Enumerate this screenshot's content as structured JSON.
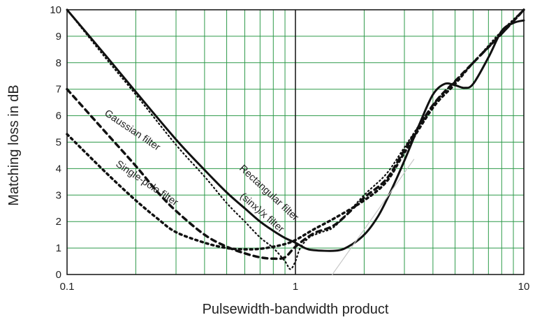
{
  "chart_data": {
    "type": "line",
    "title": "",
    "xlabel": "Pulsewidth-bandwidth product",
    "ylabel": "Matching loss in dB",
    "xscale": "log",
    "xlim": [
      0.1,
      10
    ],
    "ylim": [
      0,
      10
    ],
    "x_ticks": [
      {
        "value": 0.1,
        "label": "0.1"
      },
      {
        "value": 1,
        "label": "1"
      },
      {
        "value": 10,
        "label": "10"
      }
    ],
    "y_ticks": [
      {
        "value": 0,
        "label": "0"
      },
      {
        "value": 1,
        "label": "1"
      },
      {
        "value": 2,
        "label": "2"
      },
      {
        "value": 3,
        "label": "3"
      },
      {
        "value": 4,
        "label": "4"
      },
      {
        "value": 5,
        "label": "5"
      },
      {
        "value": 6,
        "label": "6"
      },
      {
        "value": 7,
        "label": "7"
      },
      {
        "value": 8,
        "label": "8"
      },
      {
        "value": 9,
        "label": "9"
      },
      {
        "value": 10,
        "label": "10"
      }
    ],
    "grid": true,
    "grid_color": "#2e9a4a",
    "line_color": "#111111",
    "guide_color": "#c8c8c8",
    "series": [
      {
        "name": "Rectangular filter",
        "style": "solid",
        "points": [
          [
            0.1,
            10
          ],
          [
            0.15,
            8.2
          ],
          [
            0.2,
            6.9
          ],
          [
            0.3,
            5.1
          ],
          [
            0.4,
            3.95
          ],
          [
            0.5,
            3.1
          ],
          [
            0.6,
            2.5
          ],
          [
            0.7,
            2.0
          ],
          [
            0.8,
            1.65
          ],
          [
            0.9,
            1.38
          ],
          [
            1.0,
            1.2
          ],
          [
            1.1,
            1.0
          ],
          [
            1.2,
            0.92
          ],
          [
            1.5,
            0.9
          ],
          [
            1.7,
            1.05
          ],
          [
            2.0,
            1.5
          ],
          [
            2.3,
            2.2
          ],
          [
            2.6,
            3.1
          ],
          [
            3.0,
            4.3
          ],
          [
            3.5,
            5.7
          ],
          [
            4.0,
            6.8
          ],
          [
            4.5,
            7.2
          ],
          [
            5.0,
            7.15
          ],
          [
            5.5,
            7.05
          ],
          [
            6.0,
            7.2
          ],
          [
            7.0,
            8.2
          ],
          [
            8.0,
            9.2
          ],
          [
            9.0,
            9.5
          ],
          [
            10.0,
            9.6
          ]
        ]
      },
      {
        "name": "(sinx)/x filter",
        "style": "dotted",
        "points": [
          [
            0.1,
            10
          ],
          [
            0.15,
            8.1
          ],
          [
            0.2,
            6.8
          ],
          [
            0.3,
            4.9
          ],
          [
            0.4,
            3.7
          ],
          [
            0.5,
            2.7
          ],
          [
            0.6,
            2.0
          ],
          [
            0.7,
            1.4
          ],
          [
            0.8,
            1.0
          ],
          [
            0.9,
            0.5
          ],
          [
            0.95,
            0.2
          ],
          [
            1.0,
            0.5
          ],
          [
            1.05,
            1.0
          ],
          [
            1.15,
            1.4
          ],
          [
            1.3,
            1.6
          ],
          [
            1.5,
            1.85
          ],
          [
            2.0,
            3.0
          ],
          [
            2.5,
            3.8
          ],
          [
            3.0,
            4.8
          ],
          [
            4.0,
            6.4
          ],
          [
            5.0,
            7.3
          ],
          [
            6.0,
            8.0
          ],
          [
            8.0,
            9.2
          ],
          [
            10.0,
            10.0
          ]
        ]
      },
      {
        "name": "Gaussian filter",
        "style": "dashed",
        "points": [
          [
            0.1,
            7.0
          ],
          [
            0.15,
            5.3
          ],
          [
            0.2,
            4.1
          ],
          [
            0.25,
            3.1
          ],
          [
            0.3,
            2.4
          ],
          [
            0.4,
            1.5
          ],
          [
            0.5,
            1.05
          ],
          [
            0.6,
            0.8
          ],
          [
            0.7,
            0.65
          ],
          [
            0.8,
            0.6
          ],
          [
            0.9,
            0.65
          ],
          [
            1.0,
            1.05
          ],
          [
            1.2,
            1.55
          ],
          [
            1.5,
            1.9
          ],
          [
            2.0,
            2.9
          ],
          [
            2.5,
            3.6
          ],
          [
            3.0,
            4.7
          ],
          [
            4.0,
            6.4
          ],
          [
            5.0,
            7.3
          ],
          [
            6.0,
            8.0
          ],
          [
            8.0,
            9.1
          ],
          [
            10.0,
            10.0
          ]
        ]
      },
      {
        "name": "Single-pole filter",
        "style": "dotted-bold",
        "points": [
          [
            0.1,
            5.3
          ],
          [
            0.15,
            3.8
          ],
          [
            0.2,
            2.8
          ],
          [
            0.25,
            2.1
          ],
          [
            0.3,
            1.6
          ],
          [
            0.4,
            1.2
          ],
          [
            0.5,
            1.0
          ],
          [
            0.6,
            0.95
          ],
          [
            0.7,
            0.97
          ],
          [
            0.8,
            1.05
          ],
          [
            0.9,
            1.15
          ],
          [
            1.0,
            1.3
          ],
          [
            1.2,
            1.7
          ],
          [
            1.5,
            2.15
          ],
          [
            2.0,
            2.8
          ],
          [
            2.5,
            3.5
          ],
          [
            3.0,
            4.6
          ],
          [
            4.0,
            6.3
          ],
          [
            5.0,
            7.2
          ],
          [
            6.0,
            8.0
          ],
          [
            8.0,
            9.1
          ],
          [
            10.0,
            10.0
          ]
        ]
      },
      {
        "name": "guide",
        "style": "thin-gray",
        "points": [
          [
            1.45,
            0
          ],
          [
            3.3,
            4.35
          ]
        ]
      }
    ],
    "annotations": [
      {
        "text": "Gaussian filter",
        "x": 0.19,
        "y": 5.35,
        "rotate": 34
      },
      {
        "text": "Single-pole filter",
        "x": 0.22,
        "y": 3.35,
        "rotate": 34
      },
      {
        "text": "Rectangular filter",
        "x": 0.75,
        "y": 3.0,
        "rotate": 43
      },
      {
        "text": "(sinx)/x filter",
        "x": 0.7,
        "y": 2.25,
        "rotate": 41
      }
    ]
  }
}
